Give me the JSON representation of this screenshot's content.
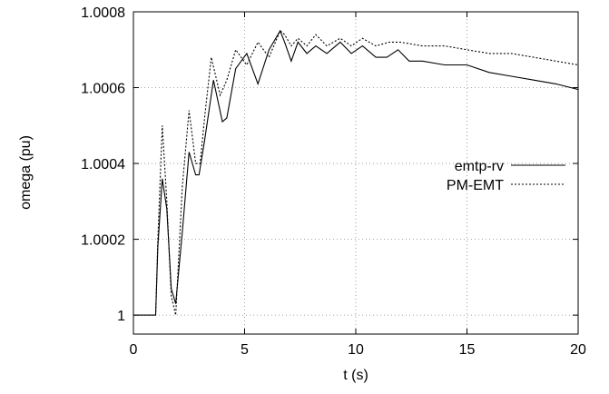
{
  "chart_data": {
    "type": "line",
    "title": "",
    "xlabel": "t (s)",
    "ylabel": "omega (pu)",
    "xlim": [
      0,
      20
    ],
    "ylim": [
      0.99995,
      1.0008
    ],
    "xticks": [
      0,
      5,
      10,
      15,
      20
    ],
    "xtick_labels": [
      "0",
      "5",
      "10",
      "15",
      "20"
    ],
    "yticks": [
      1.0,
      1.0002,
      1.0004,
      1.0006,
      1.0008
    ],
    "ytick_labels": [
      "1",
      "1.0002",
      "1.0004",
      "1.0006",
      "1.0008"
    ],
    "grid": true,
    "legend_position": "center-right",
    "series": [
      {
        "name": "emtp-rv",
        "style": "solid",
        "x": [
          0,
          1.0,
          1.1,
          1.3,
          1.5,
          1.7,
          1.9,
          2.2,
          2.5,
          2.8,
          2.95,
          3.2,
          3.6,
          4.0,
          4.2,
          4.6,
          5.1,
          5.6,
          6.1,
          6.6,
          6.8,
          7.1,
          7.4,
          7.8,
          8.2,
          8.7,
          9.3,
          9.8,
          10.3,
          10.9,
          11.4,
          11.9,
          12.4,
          13.0,
          14.0,
          15.0,
          16.0,
          17.0,
          18.0,
          19.0,
          20.0
        ],
        "y": [
          1.0,
          1.0,
          1.00018,
          1.00036,
          1.00028,
          1.00007,
          1.00003,
          1.00022,
          1.00043,
          1.00037,
          1.00037,
          1.00046,
          1.00062,
          1.00051,
          1.00052,
          1.00065,
          1.00069,
          1.00061,
          1.0007,
          1.00075,
          1.00072,
          1.00067,
          1.00072,
          1.00069,
          1.00071,
          1.00069,
          1.00072,
          1.00069,
          1.00071,
          1.00068,
          1.00068,
          1.0007,
          1.00067,
          1.00067,
          1.00066,
          1.00066,
          1.00064,
          1.00063,
          1.00062,
          1.00061,
          1.000595
        ]
      },
      {
        "name": "PM-EMT",
        "style": "dotted",
        "x": [
          0,
          1.0,
          1.1,
          1.3,
          1.5,
          1.7,
          1.9,
          2.2,
          2.5,
          2.8,
          3.0,
          3.2,
          3.5,
          3.9,
          4.2,
          4.6,
          5.1,
          5.6,
          6.1,
          6.6,
          6.8,
          7.1,
          7.4,
          7.8,
          8.2,
          8.7,
          9.3,
          9.8,
          10.3,
          10.9,
          11.5,
          12.0,
          13.0,
          14.0,
          15.0,
          16.0,
          17.0,
          18.0,
          19.0,
          20.0
        ],
        "y": [
          1.0,
          1.0,
          1.0002,
          1.0005,
          1.0003,
          1.00005,
          1.0,
          1.00034,
          1.00054,
          1.0004,
          1.0004,
          1.00052,
          1.00068,
          1.00058,
          1.00062,
          1.0007,
          1.00066,
          1.00072,
          1.00068,
          1.00075,
          1.00074,
          1.00071,
          1.00073,
          1.00071,
          1.00074,
          1.00071,
          1.00073,
          1.00071,
          1.00073,
          1.00071,
          1.00072,
          1.00072,
          1.00071,
          1.00071,
          1.0007,
          1.00069,
          1.00069,
          1.00068,
          1.00067,
          1.00066
        ]
      }
    ]
  }
}
